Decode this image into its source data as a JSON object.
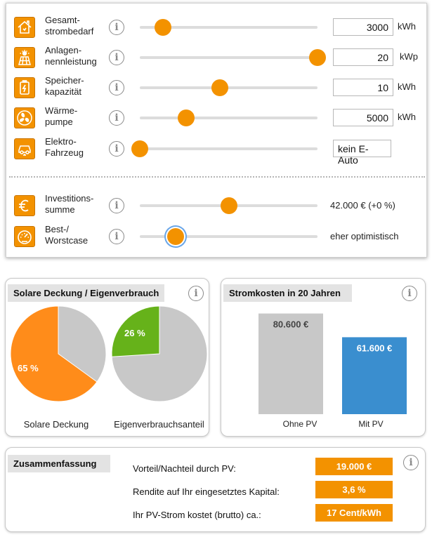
{
  "controls": [
    {
      "id": "gesamtstrombedarf",
      "label_l1": "Gesamt-",
      "label_l2": "strombedarf",
      "icon": "house-icon",
      "value": "3000",
      "unit": "kWh",
      "slider_fraction": 0.13
    },
    {
      "id": "anlagennennleistung",
      "label_l1": "Anlagen-",
      "label_l2": "nennleistung",
      "icon": "solar-panel-icon",
      "value": "20",
      "unit": "kWp",
      "slider_fraction": 1.0
    },
    {
      "id": "speicherkapazitaet",
      "label_l1": "Speicher-",
      "label_l2": "kapazität",
      "icon": "battery-icon",
      "value": "10",
      "unit": "kWh",
      "slider_fraction": 0.45
    },
    {
      "id": "waermepumpe",
      "label_l1": "Wärme-",
      "label_l2": "pumpe",
      "icon": "fan-icon",
      "value": "5000",
      "unit": "kWh",
      "slider_fraction": 0.26
    },
    {
      "id": "elektrofahrzeug",
      "label_l1": "Elektro-",
      "label_l2": "Fahrzeug",
      "icon": "car-icon",
      "value": "kein E-Auto",
      "unit": "",
      "slider_fraction": 0.0
    }
  ],
  "financial": [
    {
      "id": "investitionssumme",
      "label_l1": "Investitions-",
      "label_l2": "summe",
      "icon": "euro-icon",
      "value": "42.000 € (+0 %)",
      "slider_fraction": 0.5
    },
    {
      "id": "bestworstcase",
      "label_l1": "Best-/",
      "label_l2": "Worstcase",
      "icon": "gauge-icon",
      "value": "eher optimistisch",
      "slider_fraction": 0.2
    }
  ],
  "pies": {
    "title": "Solare Deckung / Eigenverbrauch",
    "left": {
      "label": "Solare Deckung",
      "value_text": "65 %",
      "value": 65,
      "color": "#ff8c1a"
    },
    "right": {
      "label": "Eigenverbrauchsanteil",
      "value_text": "26 %",
      "value": 26,
      "color": "#66b21a"
    },
    "rest_color": "#c8c8c8"
  },
  "chart_data": {
    "type": "bar",
    "title": "Stromkosten in 20 Jahren",
    "categories": [
      "Ohne PV",
      "Mit PV"
    ],
    "values": [
      80600,
      61600
    ],
    "value_labels": [
      "80.600 €",
      "61.600 €"
    ],
    "colors": [
      "#c8c8c8",
      "#3a8ecf"
    ],
    "ylim": [
      0,
      86000
    ]
  },
  "summary": {
    "title": "Zusammenfassung",
    "rows": [
      {
        "label": "Vorteil/Nachteil durch PV:",
        "value": "19.000 €"
      },
      {
        "label": "Rendite auf Ihr eingesetztes Kapital:",
        "value": "3,6 %"
      },
      {
        "label": "Ihr PV-Strom kostet (brutto) ca.:",
        "value": "17 Cent/kWh"
      }
    ]
  },
  "info_glyph": "i"
}
